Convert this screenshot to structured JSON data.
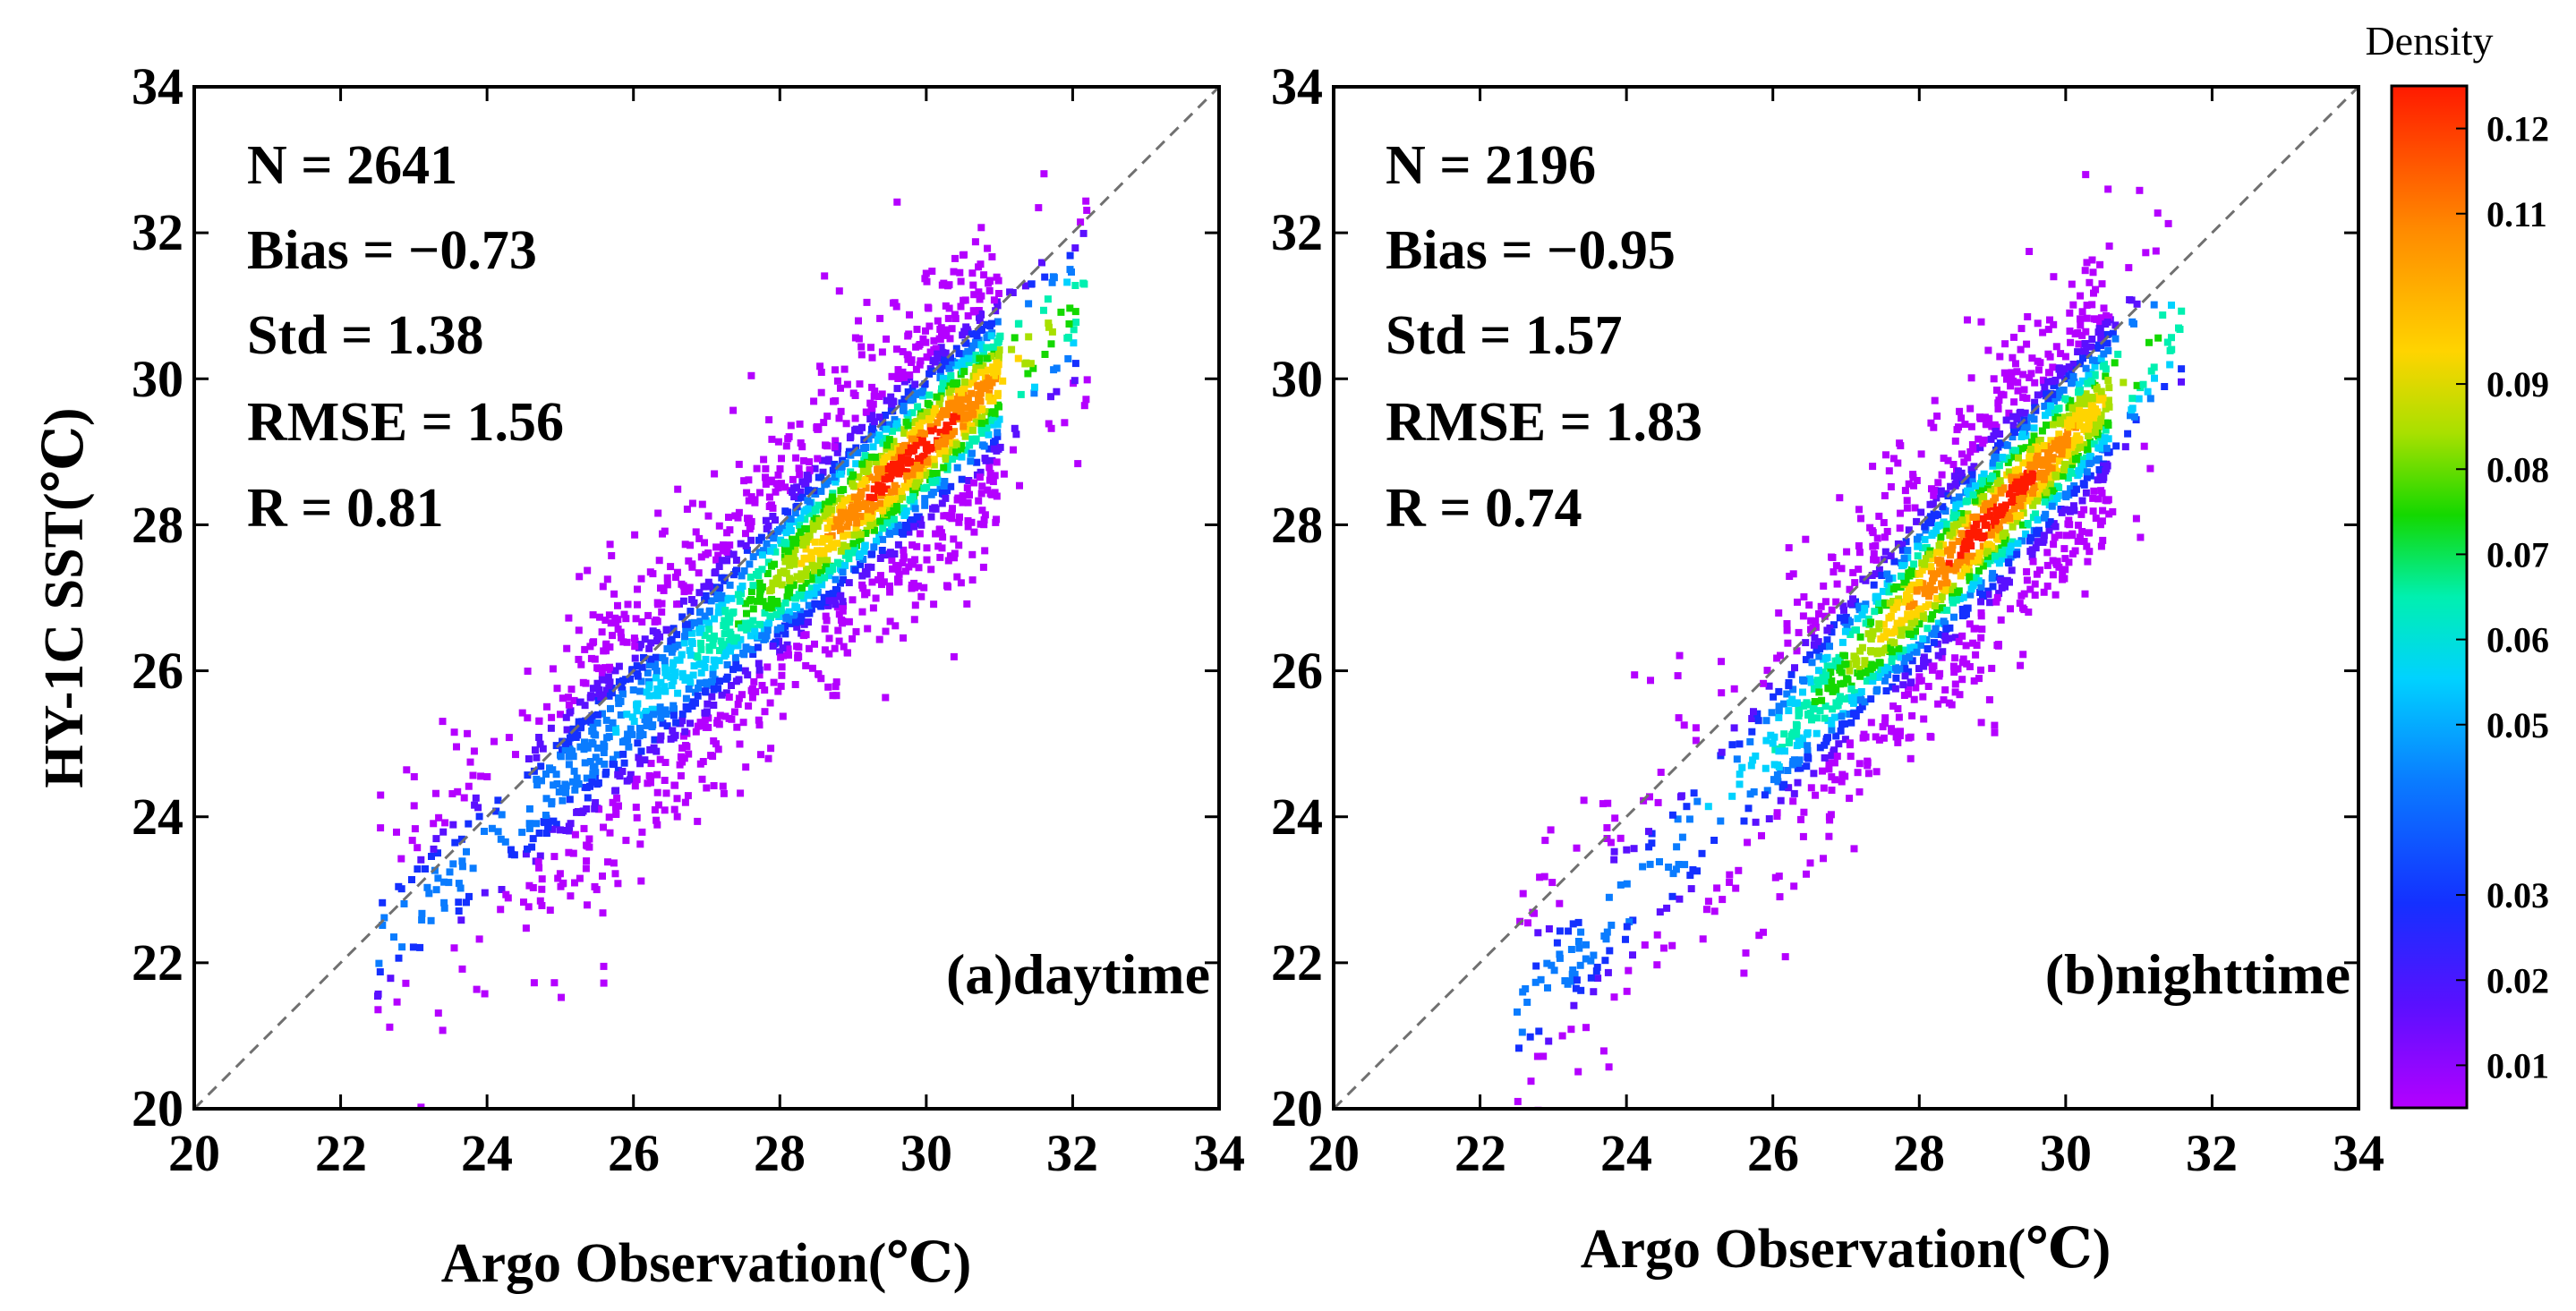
{
  "chart_data": [
    {
      "type": "scatter",
      "panel": "(a)daytime",
      "xlabel": "Argo Observation(℃)",
      "ylabel": "HY-1C SST(℃)",
      "xlim": [
        20,
        34
      ],
      "ylim": [
        20,
        34
      ],
      "xticks": [
        "20",
        "22",
        "24",
        "26",
        "28",
        "30",
        "32",
        "34"
      ],
      "yticks": [
        "20",
        "22",
        "24",
        "26",
        "28",
        "30",
        "32",
        "34"
      ],
      "reference_line": "1:1 dashed",
      "stats": {
        "n": "N = 2641",
        "bias": "Bias = −0.73",
        "std": "Std = 1.38",
        "rmse": "RMSE = 1.56",
        "r": "R = 0.81"
      },
      "sample_stats": {
        "n": 2641,
        "bias": -0.73,
        "std": 1.38,
        "rmse": 1.56,
        "r": 0.81
      },
      "x_range": [
        22.5,
        32.2
      ],
      "core_x": [
        24.5,
        31.0
      ],
      "slope": 0.92,
      "peak": [
        29.8,
        29.6
      ]
    },
    {
      "type": "scatter",
      "panel": "(b)nighttime",
      "xlabel": "Argo Observation(℃)",
      "ylabel": "",
      "xlim": [
        20,
        34
      ],
      "ylim": [
        20,
        34
      ],
      "xticks": [
        "20",
        "22",
        "24",
        "26",
        "28",
        "30",
        "32",
        "34"
      ],
      "yticks": [
        "20",
        "22",
        "24",
        "26",
        "28",
        "30",
        "32",
        "34"
      ],
      "reference_line": "1:1 dashed",
      "stats": {
        "n": "N = 2196",
        "bias": "Bias = −0.95",
        "std": "Std = 1.57",
        "rmse": "RMSE = 1.83",
        "r": "R = 0.74"
      },
      "sample_stats": {
        "n": 2196,
        "bias": -0.95,
        "std": 1.57,
        "rmse": 1.83,
        "r": 0.74
      },
      "x_range": [
        22.5,
        31.6
      ],
      "core_x": [
        25.8,
        30.6
      ],
      "slope": 1.05,
      "peak": [
        29.0,
        29.0
      ]
    }
  ],
  "colorbar": {
    "title": "Density",
    "min": 0.005,
    "max": 0.125,
    "ticks": [
      {
        "value": 0.01,
        "label": "0.01"
      },
      {
        "value": 0.02,
        "label": "0.02"
      },
      {
        "value": 0.03,
        "label": "0.03"
      },
      {
        "value": 0.05,
        "label": "0.05"
      },
      {
        "value": 0.06,
        "label": "0.06"
      },
      {
        "value": 0.07,
        "label": "0.07"
      },
      {
        "value": 0.08,
        "label": "0.08"
      },
      {
        "value": 0.09,
        "label": "0.09"
      },
      {
        "value": 0.11,
        "label": "0.11"
      },
      {
        "value": 0.12,
        "label": "0.12"
      }
    ],
    "colors": [
      "#b400ff",
      "#5a10ff",
      "#1430ff",
      "#0a7cff",
      "#00d2ff",
      "#00f0b0",
      "#14d800",
      "#a8e000",
      "#ffd400",
      "#ff8a00",
      "#ff1a00"
    ]
  }
}
